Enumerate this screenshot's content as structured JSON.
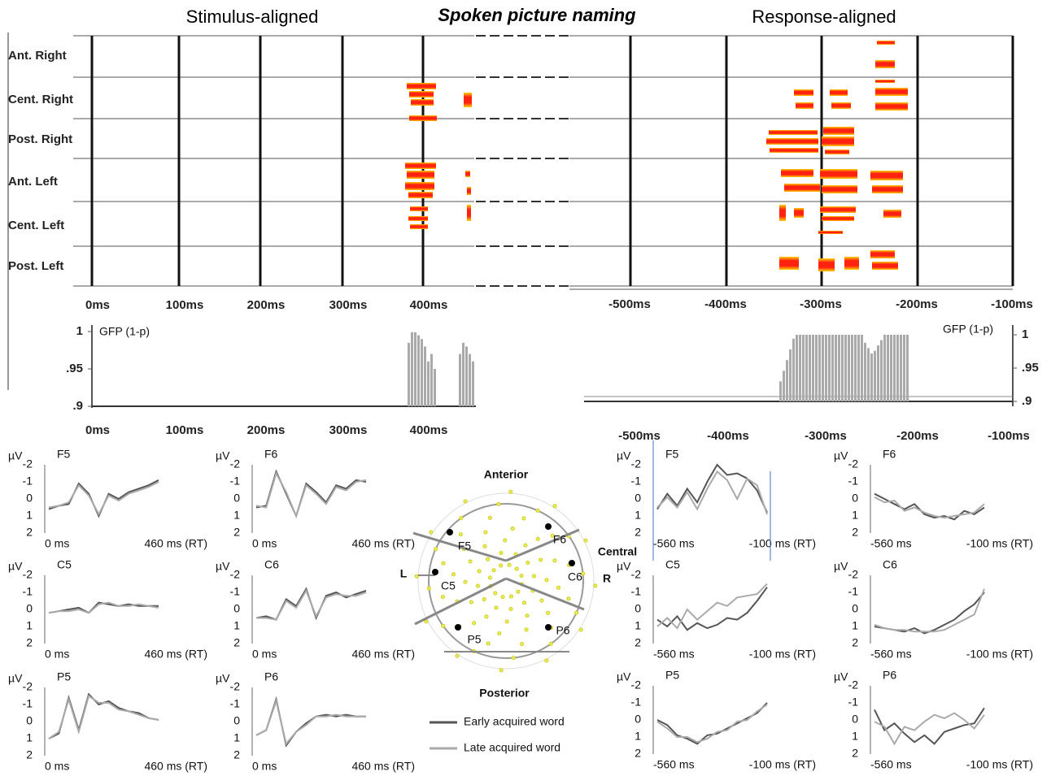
{
  "titles": {
    "left": "Stimulus-aligned",
    "center": "Spoken picture naming",
    "right": "Response-aligned"
  },
  "raster": {
    "rows": [
      "Ant. Right",
      "Cent. Right",
      "Post. Right",
      "Ant. Left",
      "Cent. Left",
      "Post. Left"
    ],
    "left_ticks": [
      "0ms",
      "100ms",
      "200ms",
      "300ms",
      "400ms"
    ],
    "right_ticks": [
      "-500ms",
      "-400ms",
      "-300ms",
      "-200ms",
      "-100ms"
    ]
  },
  "gfp": {
    "label": "GFP (1-p)",
    "yticks": [
      {
        "value": 1,
        "label": "1"
      },
      {
        "value": 0.95,
        "label": ".95"
      },
      {
        "value": 0.9,
        "label": ".9"
      }
    ],
    "left_ticks": [
      "0ms",
      "100ms",
      "200ms",
      "300ms",
      "400ms"
    ],
    "right_ticks": [
      "-500ms",
      "-400ms",
      "-300ms",
      "-200ms",
      "-100ms"
    ]
  },
  "erp": {
    "unit": "µV",
    "yticks": [
      -2,
      -1,
      0,
      1,
      2
    ],
    "panels": [
      {
        "name": "F5",
        "start": "0 ms",
        "end": "460 ms (RT)",
        "series": [
          {
            "values": [
              0.6,
              0.4,
              0.3,
              -0.9,
              -0.3,
              1.0,
              -0.3,
              0.0,
              -0.4,
              -0.6,
              -0.8,
              -1.1
            ]
          },
          {
            "values": [
              0.5,
              0.4,
              0.2,
              -0.8,
              -0.2,
              0.9,
              -0.2,
              0.1,
              -0.3,
              -0.5,
              -0.7,
              -1.0
            ]
          }
        ]
      },
      {
        "name": "F6",
        "start": "0 ms",
        "end": "460 ms (RT)",
        "series": [
          {
            "values": [
              0.5,
              0.4,
              -1.6,
              -0.3,
              1.0,
              -0.9,
              -0.4,
              0.2,
              -0.8,
              -0.6,
              -1.1,
              -1.0
            ]
          },
          {
            "values": [
              0.4,
              0.5,
              -1.5,
              -0.4,
              1.0,
              -0.8,
              -0.3,
              0.3,
              -0.7,
              -0.5,
              -1.0,
              -1.1
            ]
          }
        ]
      },
      {
        "name": "C5",
        "start": "0 ms",
        "end": "460 ms (RT)",
        "series": [
          {
            "values": [
              0.2,
              0.1,
              0.0,
              -0.1,
              0.2,
              -0.4,
              -0.3,
              -0.2,
              -0.3,
              -0.2,
              -0.2,
              -0.2
            ]
          },
          {
            "values": [
              0.2,
              0.1,
              0.1,
              0.0,
              0.2,
              -0.3,
              -0.4,
              -0.2,
              -0.2,
              -0.3,
              -0.2,
              -0.1
            ]
          }
        ]
      },
      {
        "name": "C6",
        "start": "0 ms",
        "end": "460 ms (RT)",
        "series": [
          {
            "values": [
              0.5,
              0.4,
              0.6,
              -0.6,
              -0.2,
              -1.2,
              0.5,
              -0.8,
              -1.0,
              -0.7,
              -0.9,
              -1.1
            ]
          },
          {
            "values": [
              0.5,
              0.5,
              0.6,
              -0.5,
              -0.1,
              -1.1,
              0.4,
              -0.7,
              -0.9,
              -0.8,
              -0.8,
              -1.0
            ]
          }
        ]
      },
      {
        "name": "P5",
        "start": "0 ms",
        "end": "460 ms (RT)",
        "series": [
          {
            "values": [
              1.0,
              0.7,
              -1.4,
              0.5,
              -1.6,
              -1.0,
              -1.2,
              -0.8,
              -0.6,
              -0.5,
              -0.2,
              -0.1
            ]
          },
          {
            "values": [
              1.0,
              0.6,
              -1.3,
              0.6,
              -1.5,
              -1.1,
              -1.1,
              -0.7,
              -0.6,
              -0.4,
              -0.2,
              -0.1
            ]
          }
        ]
      },
      {
        "name": "P6",
        "start": "0 ms",
        "end": "460 ms (RT)",
        "series": [
          {
            "values": [
              0.8,
              0.5,
              -1.3,
              1.4,
              0.6,
              0.1,
              -0.3,
              -0.4,
              -0.3,
              -0.4,
              -0.3,
              -0.3
            ]
          },
          {
            "values": [
              0.8,
              0.5,
              -1.2,
              1.3,
              0.6,
              0.2,
              -0.3,
              -0.3,
              -0.4,
              -0.3,
              -0.3,
              -0.3
            ]
          }
        ]
      },
      {
        "name": "F5",
        "start": "-560 ms",
        "end": "-100 ms (RT)",
        "series": [
          {
            "values": [
              0.6,
              -0.3,
              0.4,
              -0.6,
              0.2,
              -1.0,
              -2.0,
              -1.4,
              -1.5,
              -1.2,
              -0.5,
              0.8
            ]
          },
          {
            "values": [
              0.5,
              -0.1,
              0.5,
              -0.4,
              0.6,
              -0.6,
              -1.6,
              -1.1,
              0.0,
              -1.2,
              -0.8,
              0.9
            ]
          }
        ]
      },
      {
        "name": "F6",
        "start": "-560 ms",
        "end": "-100 ms (RT)",
        "series": [
          {
            "values": [
              -0.3,
              0.0,
              0.3,
              0.6,
              0.3,
              0.9,
              1.1,
              1.0,
              1.2,
              0.7,
              0.9,
              0.5
            ]
          },
          {
            "values": [
              -0.1,
              0.2,
              0.1,
              0.7,
              0.5,
              0.8,
              1.0,
              1.1,
              1.0,
              0.9,
              0.8,
              0.3
            ]
          }
        ]
      },
      {
        "name": "C5",
        "start": "-560 ms",
        "end": "-100 ms (RT)",
        "series": [
          {
            "values": [
              0.6,
              1.0,
              0.4,
              1.2,
              0.8,
              1.1,
              0.9,
              0.5,
              0.6,
              0.2,
              -0.5,
              -1.3
            ]
          },
          {
            "values": [
              1.0,
              0.5,
              1.1,
              0.0,
              0.6,
              0.1,
              -0.4,
              -0.2,
              -0.7,
              -0.8,
              -0.9,
              -1.5
            ]
          }
        ]
      },
      {
        "name": "C6",
        "start": "-560 ms",
        "end": "-100 ms (RT)",
        "series": [
          {
            "values": [
              1.0,
              1.1,
              1.2,
              1.3,
              1.1,
              1.4,
              1.2,
              0.9,
              0.6,
              0.1,
              -0.3,
              -1.0
            ]
          },
          {
            "values": [
              0.9,
              1.1,
              1.2,
              1.2,
              1.3,
              1.3,
              1.3,
              1.2,
              0.9,
              0.6,
              0.3,
              -1.2
            ]
          }
        ]
      },
      {
        "name": "P5",
        "start": "-560 ms",
        "end": "-100 ms (RT)",
        "series": [
          {
            "values": [
              0.0,
              0.3,
              0.9,
              1.1,
              1.4,
              0.9,
              0.8,
              0.5,
              0.2,
              -0.1,
              -0.4,
              -1.0
            ]
          },
          {
            "values": [
              0.1,
              0.5,
              1.0,
              1.0,
              1.3,
              1.1,
              0.7,
              0.6,
              0.1,
              0.0,
              -0.5,
              -0.9
            ]
          }
        ]
      },
      {
        "name": "P6",
        "start": "-560 ms",
        "end": "-100 ms (RT)",
        "series": [
          {
            "values": [
              -0.6,
              0.6,
              0.2,
              0.8,
              1.3,
              0.9,
              1.4,
              0.7,
              0.5,
              0.3,
              0.2,
              -0.7
            ]
          },
          {
            "values": [
              0.1,
              0.4,
              1.4,
              0.4,
              0.6,
              0.1,
              -0.3,
              -0.1,
              -0.4,
              0.0,
              0.5,
              -0.3
            ]
          }
        ]
      }
    ]
  },
  "head": {
    "anterior": "Anterior",
    "posterior": "Posterior",
    "left": "L",
    "right": "R",
    "central": "Central",
    "electrodes": [
      "F5",
      "F6",
      "C5",
      "C6",
      "P5",
      "P6"
    ]
  },
  "legend": [
    {
      "name": "Early acquired word",
      "color": "#555555"
    },
    {
      "name": "Late acquired word",
      "color": "#aaaaaa"
    }
  ]
}
